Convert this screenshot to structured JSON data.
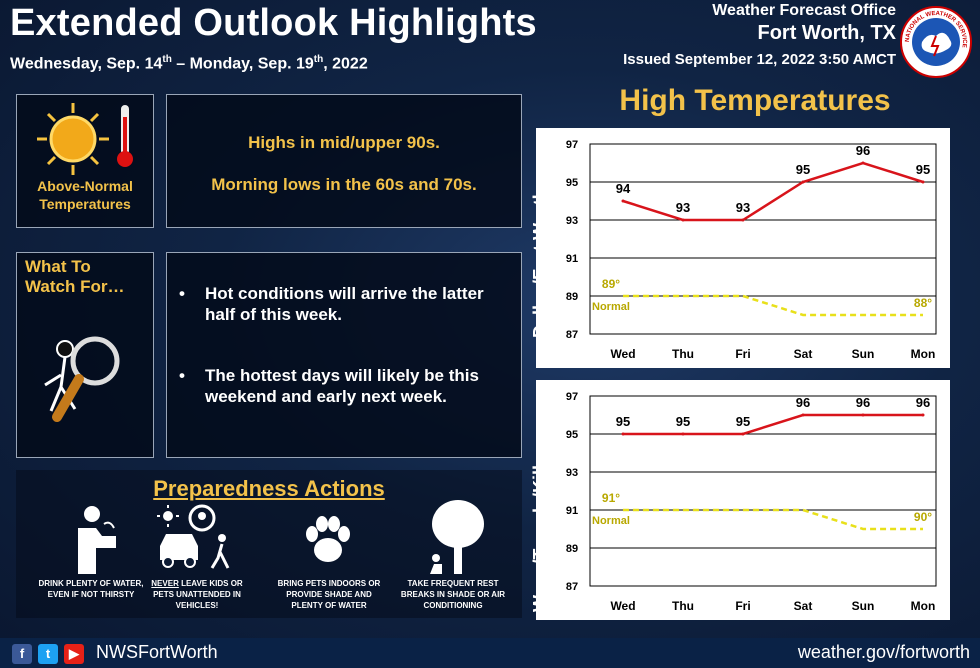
{
  "header": {
    "title": "Extended Outlook Highlights",
    "dates_prefix": "Wednesday, Sep. 14",
    "dates_sup1": "th",
    "dates_mid": " – Monday, Sep. 19",
    "dates_sup2": "th",
    "dates_suffix": ", 2022",
    "office_line1": "Weather Forecast Office",
    "office_line2": "Fort Worth, TX",
    "issued": "Issued September 12, 2022 3:50 AMCT",
    "logo_text": "NATIONAL WEATHER SERVICE"
  },
  "summary": {
    "icon_caption": "Above-Normal Temperatures",
    "highs": "Highs in mid/upper 90s.",
    "lows": "Morning lows in the 60s and 70s."
  },
  "watch": {
    "title_line1": "What To",
    "title_line2": "Watch For…",
    "bullet1": "Hot conditions will arrive the latter half of this week.",
    "bullet2": "The hottest days will likely be this weekend and early next week."
  },
  "preparedness": {
    "title": "Preparedness Actions",
    "actions": [
      {
        "icon": "drinking-fountain-icon",
        "text": "DRINK PLENTY OF WATER, EVEN IF NOT THIRSTY"
      },
      {
        "icon": "car-child-icon",
        "text_em": "NEVER",
        "text": " LEAVE KIDS OR PETS UNATTENDED IN VEHICLES!"
      },
      {
        "icon": "paw-icon",
        "text": "BRING PETS INDOORS OR PROVIDE SHADE AND PLENTY OF WATER"
      },
      {
        "icon": "tree-shade-icon",
        "text": "TAKE FREQUENT REST BREAKS IN SHADE OR AIR CONDITIONING"
      }
    ]
  },
  "footer": {
    "handle": "NWSFortWorth",
    "url": "weather.gov/fortworth",
    "social_icons": [
      "facebook-icon",
      "twitter-icon",
      "youtube-icon"
    ]
  },
  "colors": {
    "accent_yellow": "#f3c24a",
    "forecast_line": "#d8141b",
    "normal_line": "#e8e01a"
  },
  "chart_heading": "High Temperatures",
  "chart_data": [
    {
      "type": "line",
      "location": "Dallas/Fort Worth",
      "categories": [
        "Wed",
        "Thu",
        "Fri",
        "Sat",
        "Sun",
        "Mon"
      ],
      "series": [
        {
          "values": [
            94,
            93,
            93,
            95,
            96,
            95
          ],
          "color": "#d8141b",
          "style": "solid"
        },
        {
          "values": [
            89,
            89,
            89,
            88,
            88,
            88
          ],
          "color": "#e8e01a",
          "style": "dashed"
        }
      ],
      "point_labels": [
        "94",
        "93",
        "93",
        "95",
        "96",
        "95"
      ],
      "normal_start_label": "89°",
      "normal_end_label": "88°",
      "normal_text": "Normal",
      "yticks": [
        87,
        89,
        91,
        93,
        95,
        97
      ],
      "ylim": [
        87,
        97
      ],
      "grid": true
    },
    {
      "type": "line",
      "location": "Waco/Temple/Killeen",
      "categories": [
        "Wed",
        "Thu",
        "Fri",
        "Sat",
        "Sun",
        "Mon"
      ],
      "series": [
        {
          "values": [
            95,
            95,
            95,
            96,
            96,
            96
          ],
          "color": "#d8141b",
          "style": "solid"
        },
        {
          "values": [
            91,
            91,
            91,
            91,
            90,
            90
          ],
          "color": "#e8e01a",
          "style": "dashed"
        }
      ],
      "point_labels": [
        "95",
        "95",
        "95",
        "96",
        "96",
        "96"
      ],
      "normal_start_label": "91°",
      "normal_end_label": "90°",
      "normal_text": "Normal",
      "yticks": [
        87,
        89,
        91,
        93,
        95,
        97
      ],
      "ylim": [
        87,
        97
      ],
      "grid": true
    }
  ]
}
